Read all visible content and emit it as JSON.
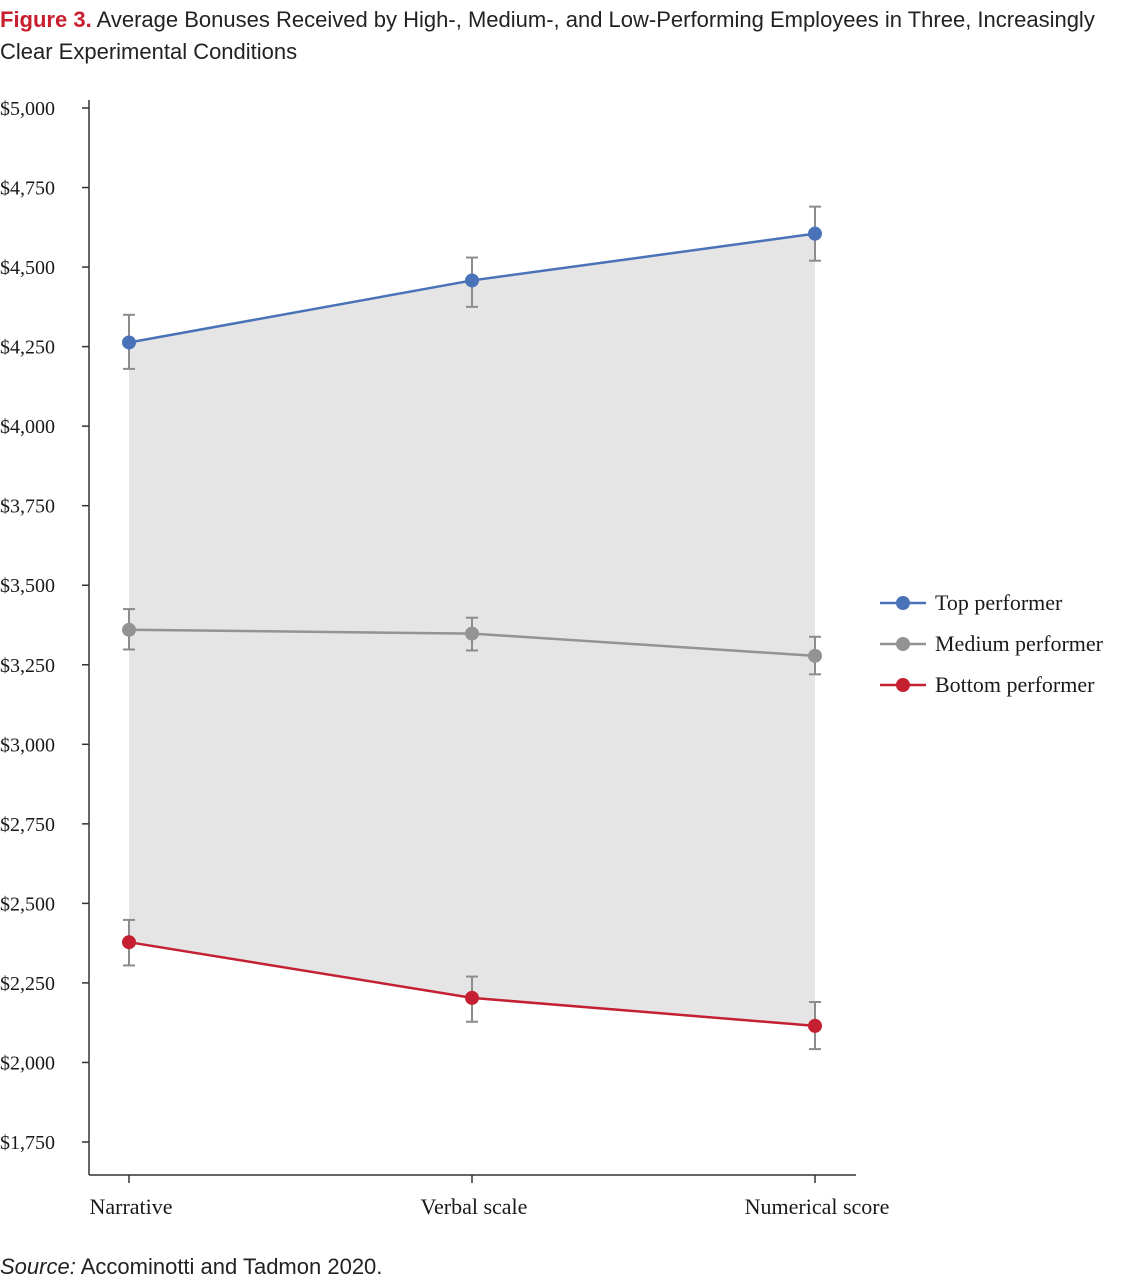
{
  "figure": {
    "label": "Figure 3.",
    "title": " Average Bonuses Received by High-, Medium-, and Low-Performing Employees in Three, Increasingly Clear Experimental Conditions",
    "source_label": "Source:",
    "source_text": " Accominotti and Tadmon 2020."
  },
  "chart_data": {
    "type": "line",
    "categories": [
      "Narrative",
      "Verbal scale",
      "Numerical score"
    ],
    "ylim": [
      1750,
      5000
    ],
    "yticks": [
      5000,
      4750,
      4500,
      4250,
      4000,
      3750,
      3500,
      3250,
      3000,
      2750,
      2500,
      2250,
      2000,
      1750
    ],
    "ytick_labels": [
      "$5,000",
      "$4,750",
      "$4,500",
      "$4,250",
      "$4,000",
      "$3,750",
      "$3,500",
      "$3,250",
      "$3,000",
      "$2,750",
      "$2,500",
      "$2,250",
      "$2,000",
      "$1,750"
    ],
    "grid": false,
    "legend_position": "right",
    "shaded_band": {
      "from_series": "Top performer",
      "to_series": "Bottom performer",
      "color": "#e5e5e5"
    },
    "series": [
      {
        "name": "Top performer",
        "color": "#4a72b8",
        "values": [
          4263,
          4458,
          4605
        ],
        "error_low": [
          4180,
          4375,
          4520
        ],
        "error_high": [
          4350,
          4530,
          4690
        ]
      },
      {
        "name": "Medium performer",
        "color": "#939393",
        "values": [
          3360,
          3348,
          3278
        ],
        "error_low": [
          3298,
          3295,
          3220
        ],
        "error_high": [
          3425,
          3398,
          3338
        ]
      },
      {
        "name": "Bottom performer",
        "color": "#c42031",
        "values": [
          2378,
          2203,
          2115
        ],
        "error_low": [
          2305,
          2128,
          2042
        ],
        "error_high": [
          2448,
          2270,
          2190
        ]
      }
    ]
  }
}
